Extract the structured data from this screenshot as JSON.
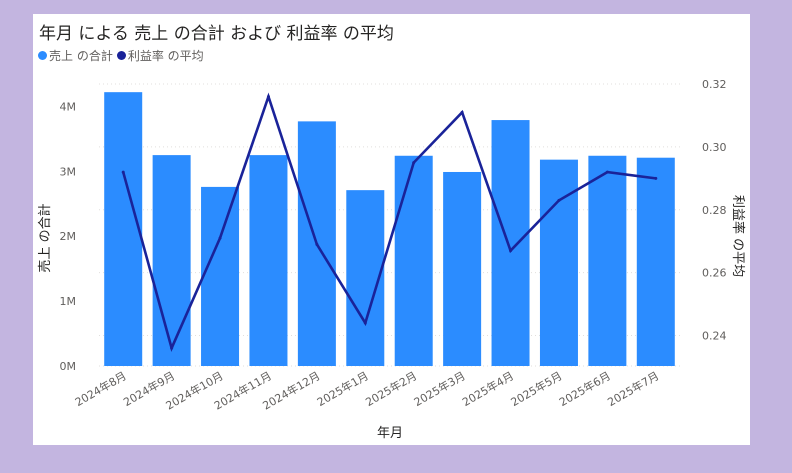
{
  "chart_data": {
    "type": "bar",
    "title": "年月 による 売上 の合計 および 利益率 の平均",
    "xlabel": "年月",
    "ylabel": "売上 の合計",
    "y2label": "利益率 の平均",
    "legend_position": "top-left",
    "grid": true,
    "categories": [
      "2024年8月",
      "2024年9月",
      "2024年10月",
      "2024年11月",
      "2024年12月",
      "2025年1月",
      "2025年2月",
      "2025年3月",
      "2025年4月",
      "2025年5月",
      "2025年6月",
      "2025年7月"
    ],
    "ylim": [
      0,
      4500000
    ],
    "y2lim": [
      0.2303,
      0.3232
    ],
    "y_ticks": [
      0,
      1000000,
      2000000,
      3000000,
      4000000
    ],
    "y_tick_labels": [
      "0M",
      "1M",
      "2M",
      "3M",
      "4M"
    ],
    "y2_ticks": [
      0.24,
      0.26,
      0.28,
      0.3,
      0.32
    ],
    "y2_tick_labels": [
      "0.24",
      "0.26",
      "0.28",
      "0.30",
      "0.32"
    ],
    "series": [
      {
        "name": "売上 の合計",
        "type": "bar",
        "axis": "left",
        "color": "#2b8cff",
        "values": [
          4220000,
          3250000,
          2760000,
          3250000,
          3770000,
          2710000,
          3240000,
          2990000,
          3790000,
          3180000,
          3240000,
          3210000
        ]
      },
      {
        "name": "利益率 の平均",
        "type": "line",
        "axis": "right",
        "color": "#1a2399",
        "values": [
          0.292,
          0.236,
          0.271,
          0.316,
          0.269,
          0.244,
          0.295,
          0.311,
          0.267,
          0.283,
          0.292,
          0.29
        ]
      }
    ]
  }
}
